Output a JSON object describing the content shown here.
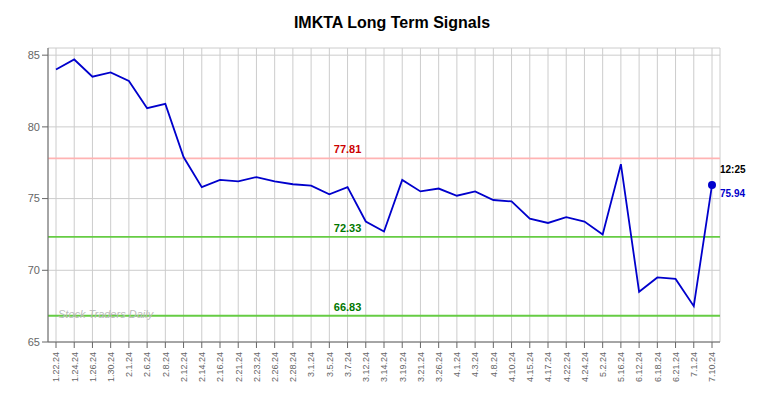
{
  "chart_data": {
    "type": "line",
    "title": "IMKTA Long Term Signals",
    "categories": [
      "1.22.24",
      "1.24.24",
      "1.26.24",
      "1.30.24",
      "2.1.24",
      "2.6.24",
      "2.8.24",
      "2.12.24",
      "2.14.24",
      "2.16.24",
      "2.21.24",
      "2.23.24",
      "2.26.24",
      "2.28.24",
      "3.1.24",
      "3.5.24",
      "3.7.24",
      "3.12.24",
      "3.14.24",
      "3.19.24",
      "3.21.24",
      "3.26.24",
      "4.1.24",
      "4.3.24",
      "4.8.24",
      "4.10.24",
      "4.15.24",
      "4.17.24",
      "4.22.24",
      "4.24.24",
      "5.2.24",
      "5.16.24",
      "6.12.24",
      "6.18.24",
      "6.21.24",
      "7.1.24",
      "7.10.24"
    ],
    "values": [
      84.0,
      84.7,
      83.5,
      83.8,
      83.2,
      81.3,
      81.6,
      77.9,
      75.8,
      76.3,
      76.2,
      76.5,
      76.2,
      76.0,
      75.9,
      75.3,
      75.8,
      73.4,
      72.7,
      76.3,
      75.5,
      75.7,
      75.2,
      75.5,
      74.9,
      74.8,
      73.6,
      73.3,
      73.7,
      73.4,
      72.5,
      77.4,
      68.5,
      69.5,
      69.4,
      67.5,
      75.94
    ],
    "color": "#0000cc",
    "ylim": [
      65,
      85.5
    ],
    "yticks": [
      65,
      70,
      75,
      80,
      85
    ],
    "grid": true,
    "reference_lines": [
      {
        "value": 77.81,
        "label": "77.81",
        "color": "#ffb3b3",
        "label_color": "#cc0000"
      },
      {
        "value": 72.33,
        "label": "72.33",
        "color": "#66cc44",
        "label_color": "#007700"
      },
      {
        "value": 66.83,
        "label": "66.83",
        "color": "#66cc44",
        "label_color": "#007700"
      }
    ],
    "annotations": [
      "12:25",
      "75.94"
    ],
    "watermark": "Stock Traders Daily"
  }
}
